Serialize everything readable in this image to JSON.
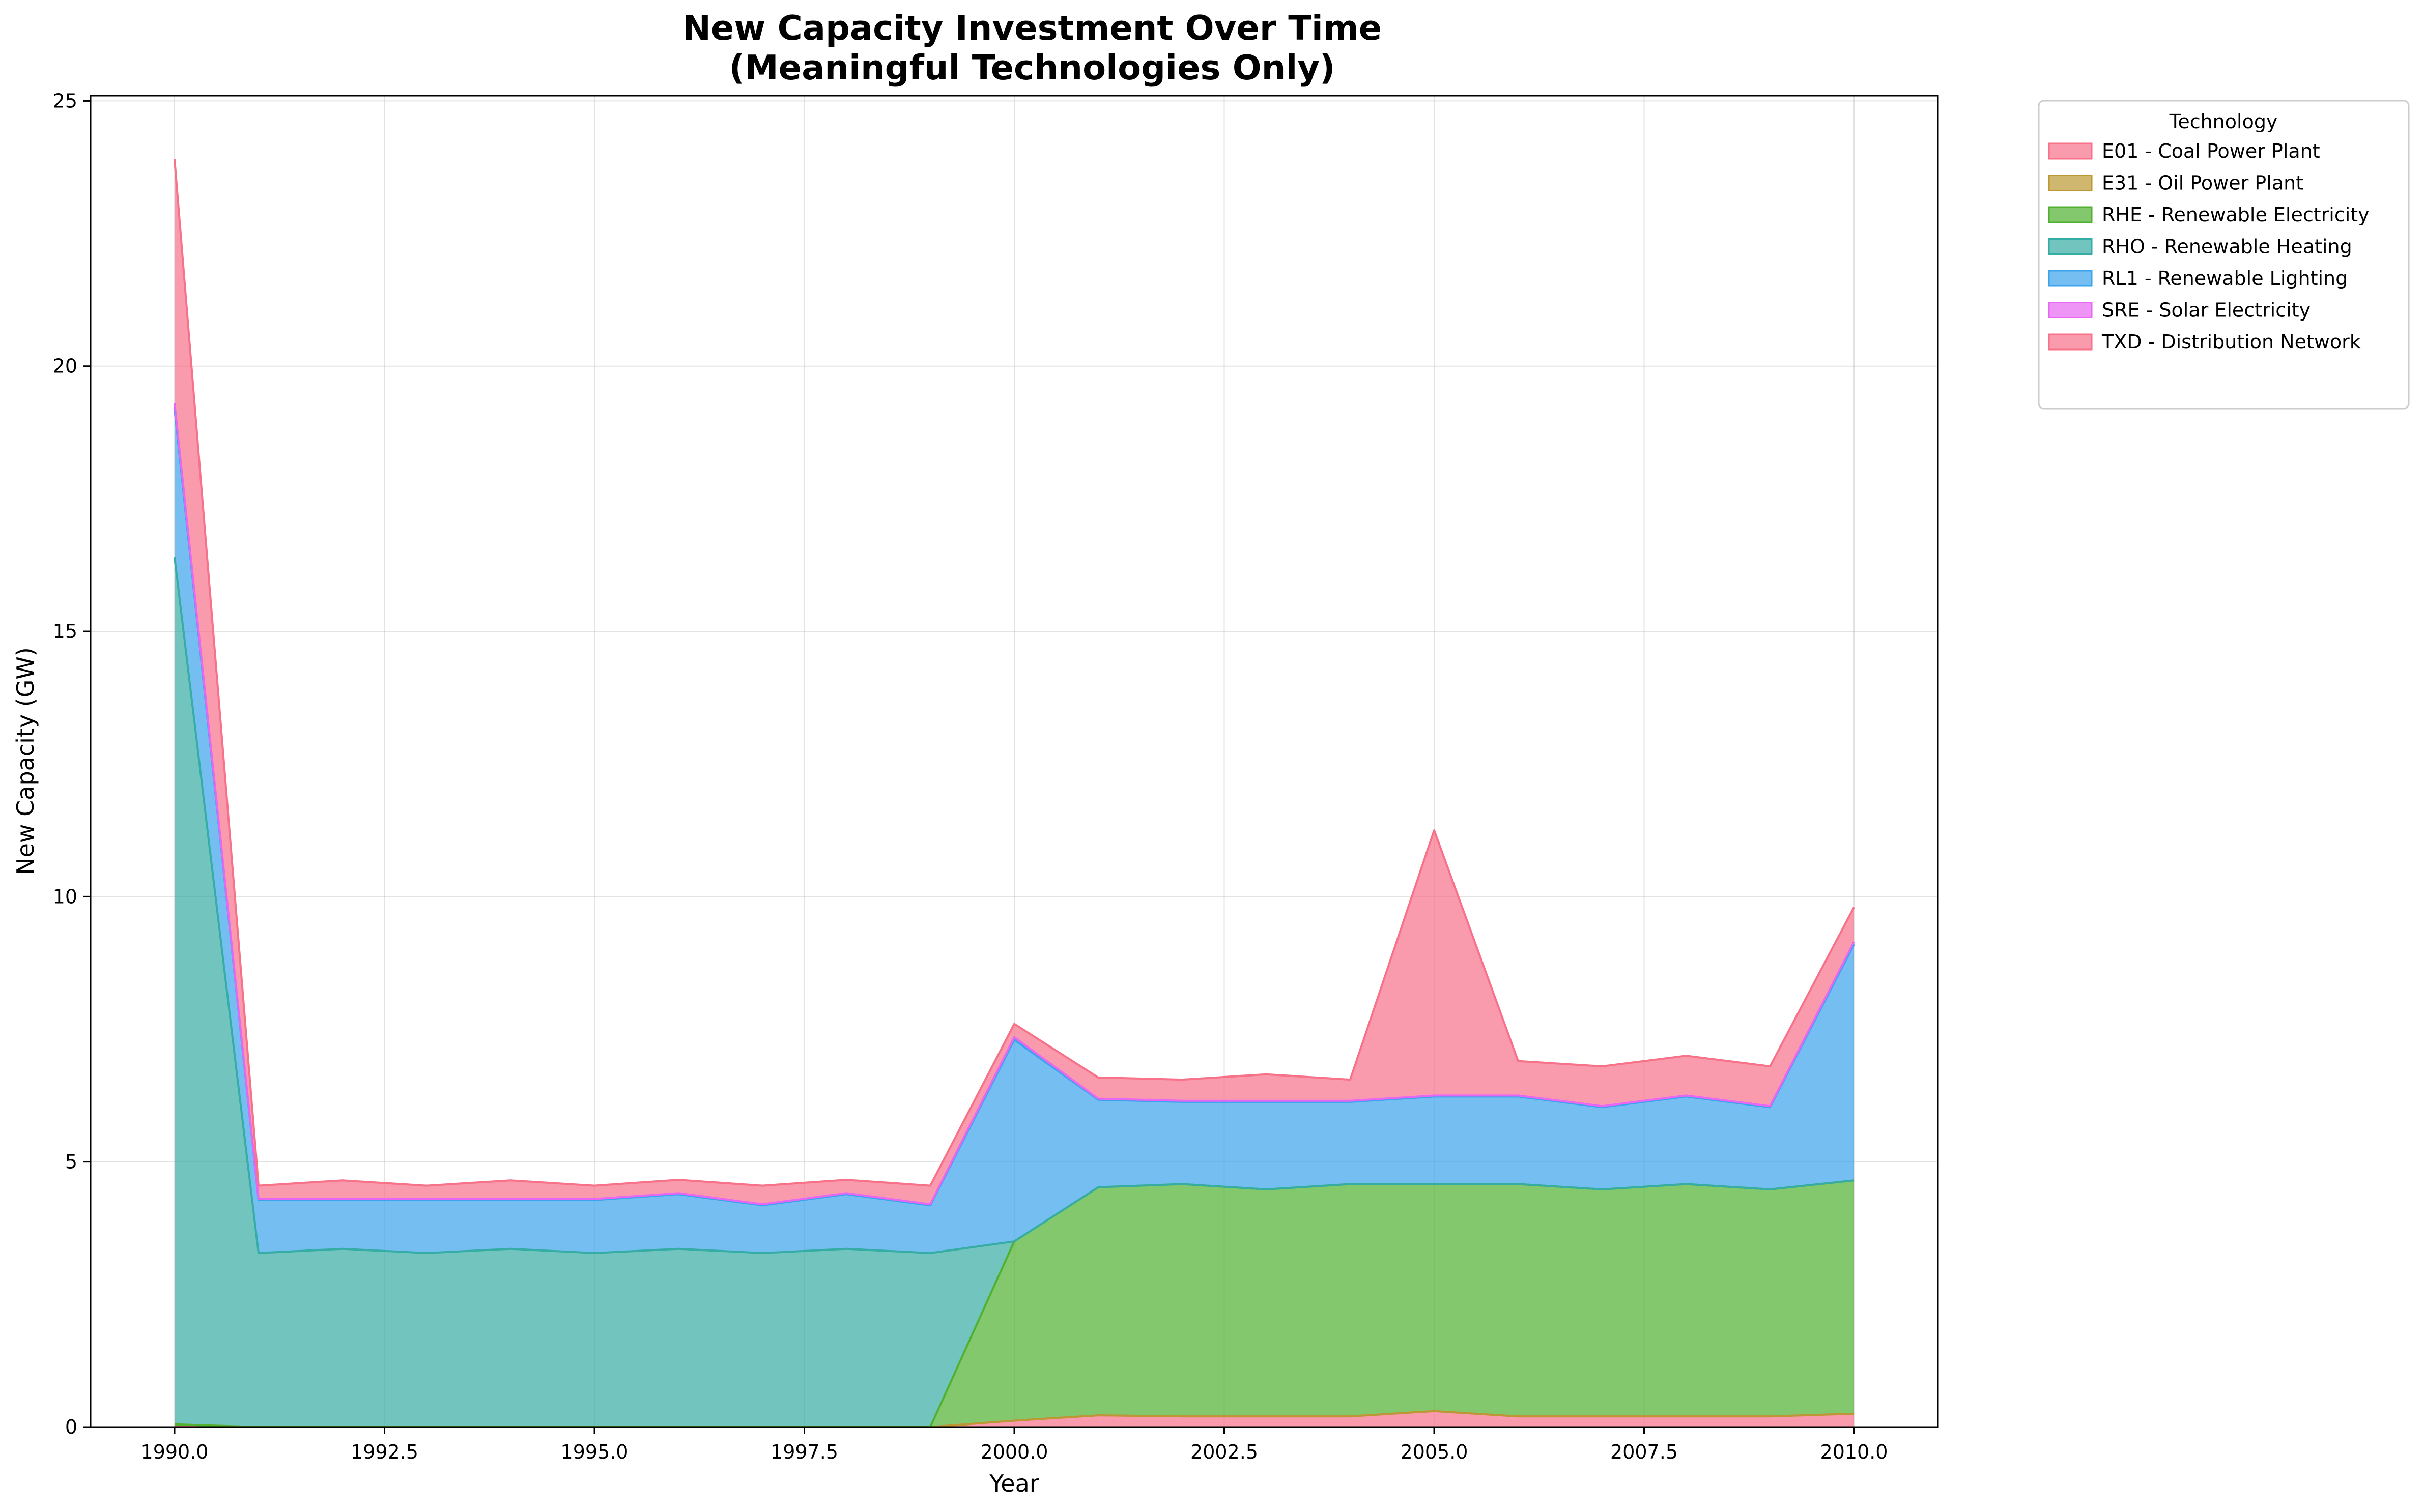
{
  "chart_data": {
    "type": "area",
    "stacked": true,
    "title": "New Capacity Investment Over Time",
    "subtitle": "(Meaningful Technologies Only)",
    "xlabel": "Year",
    "ylabel": "New Capacity (GW)",
    "xlim": [
      1989.0,
      2011.0
    ],
    "ylim": [
      0,
      25.1
    ],
    "x_ticks": [
      1990.0,
      1992.5,
      1995.0,
      1997.5,
      2000.0,
      2002.5,
      2005.0,
      2007.5,
      2010.0
    ],
    "x_tick_labels": [
      "1990.0",
      "1992.5",
      "1995.0",
      "1997.5",
      "2000.0",
      "2002.5",
      "2005.0",
      "2007.5",
      "2010.0"
    ],
    "y_ticks": [
      0,
      5,
      10,
      15,
      20,
      25
    ],
    "y_tick_labels": [
      "0",
      "5",
      "10",
      "15",
      "20",
      "25"
    ],
    "grid": true,
    "legend_title": "Technology",
    "legend_position": "outside-right-top",
    "x": [
      1990,
      1991,
      1992,
      1993,
      1994,
      1995,
      1996,
      1997,
      1998,
      1999,
      2000,
      2001,
      2002,
      2003,
      2004,
      2005,
      2006,
      2007,
      2008,
      2009,
      2010
    ],
    "series": [
      {
        "name": "E01 - Coal Power Plant",
        "color": "#f77189",
        "values": [
          0,
          0,
          0,
          0,
          0,
          0,
          0,
          0,
          0,
          0,
          0.12,
          0.22,
          0.2,
          0.2,
          0.2,
          0.3,
          0.2,
          0.2,
          0.2,
          0.2,
          0.25
        ]
      },
      {
        "name": "E31 - Oil Power Plant",
        "color": "#bb9832",
        "values": [
          0.05,
          0,
          0,
          0,
          0,
          0,
          0,
          0,
          0,
          0,
          0,
          0,
          0,
          0,
          0,
          0,
          0,
          0,
          0,
          0,
          0
        ]
      },
      {
        "name": "RHE - Renewable Electricity",
        "color": "#50b131",
        "values": [
          0,
          0,
          0,
          0,
          0,
          0,
          0,
          0,
          0,
          0,
          3.38,
          4.3,
          4.38,
          4.28,
          4.38,
          4.28,
          4.38,
          4.28,
          4.38,
          4.28,
          4.4
        ]
      },
      {
        "name": "RHO - Renewable Heating",
        "color": "#36ada4",
        "values": [
          16.35,
          3.28,
          3.36,
          3.28,
          3.36,
          3.28,
          3.36,
          3.28,
          3.36,
          3.28,
          0,
          0,
          0,
          0,
          0,
          0,
          0,
          0,
          0,
          0,
          0
        ]
      },
      {
        "name": "RL1 - Renewable Lighting",
        "color": "#3ba3ec",
        "values": [
          2.8,
          1.0,
          0.92,
          1.0,
          0.92,
          1.0,
          1.03,
          0.9,
          1.03,
          0.9,
          3.8,
          1.65,
          1.55,
          1.65,
          1.55,
          1.65,
          1.65,
          1.55,
          1.65,
          1.55,
          4.45
        ]
      },
      {
        "name": "SRE - Solar Electricity",
        "color": "#e866f4",
        "values": [
          0.1,
          0.02,
          0.02,
          0.02,
          0.02,
          0.02,
          0.02,
          0.02,
          0.02,
          0.02,
          0.05,
          0.02,
          0.02,
          0.02,
          0.02,
          0.02,
          0.02,
          0.02,
          0.02,
          0.02,
          0.05
        ]
      },
      {
        "name": "TXD - Distribution Network",
        "color": "#f77189",
        "values": [
          4.6,
          0.25,
          0.35,
          0.25,
          0.35,
          0.25,
          0.25,
          0.35,
          0.25,
          0.35,
          0.25,
          0.4,
          0.4,
          0.5,
          0.4,
          5.0,
          0.65,
          0.75,
          0.75,
          0.75,
          0.65
        ]
      }
    ]
  }
}
